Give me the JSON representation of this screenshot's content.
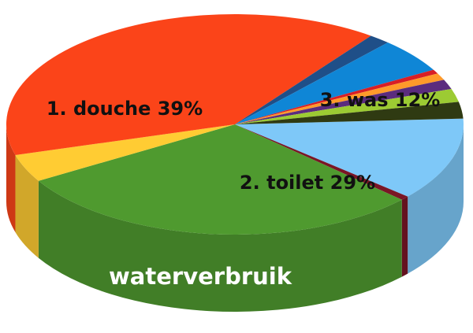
{
  "chart_data": {
    "type": "pie",
    "title": "",
    "style": "3d",
    "slices": [
      {
        "label": "3. was 12%",
        "value": 12,
        "color": "#7ec8f8"
      },
      {
        "label": "",
        "value": 0.6,
        "color": "#7a1626"
      },
      {
        "label": "2. toilet 29%",
        "value": 29,
        "color": "#4f9a2f"
      },
      {
        "label": "",
        "value": 4,
        "color": "#ffcc33"
      },
      {
        "label": "1. douche 39%",
        "value": 39,
        "color": "#fb4419"
      },
      {
        "label": "",
        "value": 1.5,
        "color": "#1f4f88"
      },
      {
        "label": "",
        "value": 5,
        "color": "#0f86d6"
      },
      {
        "label": "",
        "value": 0.6,
        "color": "#d81f26"
      },
      {
        "label": "",
        "value": 1,
        "color": "#ff9a2a"
      },
      {
        "label": "",
        "value": 1.4,
        "color": "#5b2c7e"
      },
      {
        "label": "",
        "value": 1.9,
        "color": "#9ccb33"
      },
      {
        "label": "",
        "value": 2.4,
        "color": "#2f3a12"
      }
    ],
    "brand_text": "waterverbruik",
    "brand_color": "#ffffff"
  }
}
